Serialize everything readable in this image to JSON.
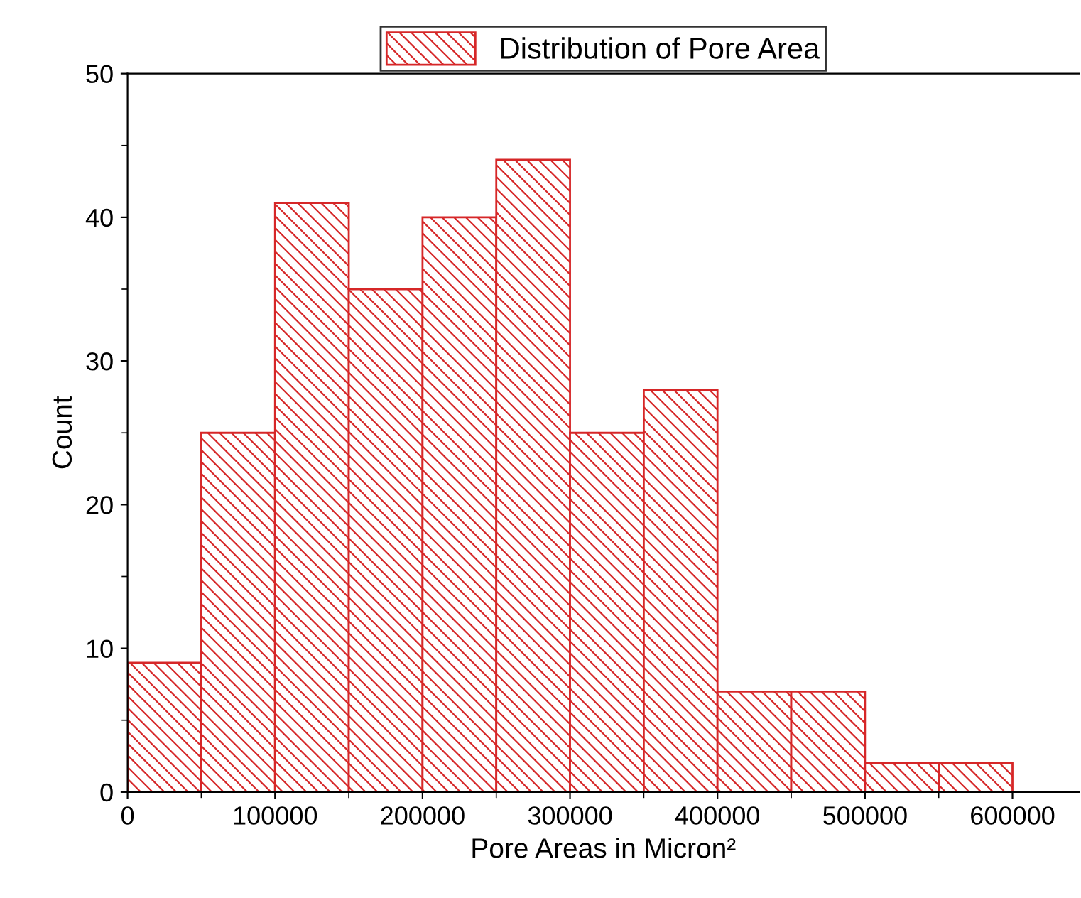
{
  "chart_data": {
    "type": "histogram",
    "xlabel": "Pore Areas in Micron²",
    "ylabel": "Count",
    "bins": [
      0,
      50000,
      100000,
      150000,
      200000,
      250000,
      300000,
      350000,
      400000,
      450000,
      500000,
      550000,
      600000
    ],
    "series": [
      {
        "name": "Distribution of Pore Area",
        "color": "#d62728",
        "values": [
          9,
          25,
          41,
          35,
          40,
          44,
          25,
          28,
          7,
          7,
          2,
          2
        ]
      }
    ],
    "xlim": [
      0,
      645000
    ],
    "xticks": [
      0,
      100000,
      200000,
      300000,
      400000,
      500000,
      600000
    ],
    "ylim": [
      0,
      50
    ],
    "yticks": [
      0,
      10,
      20,
      30,
      40,
      50
    ],
    "legend": "top",
    "grid": false
  }
}
